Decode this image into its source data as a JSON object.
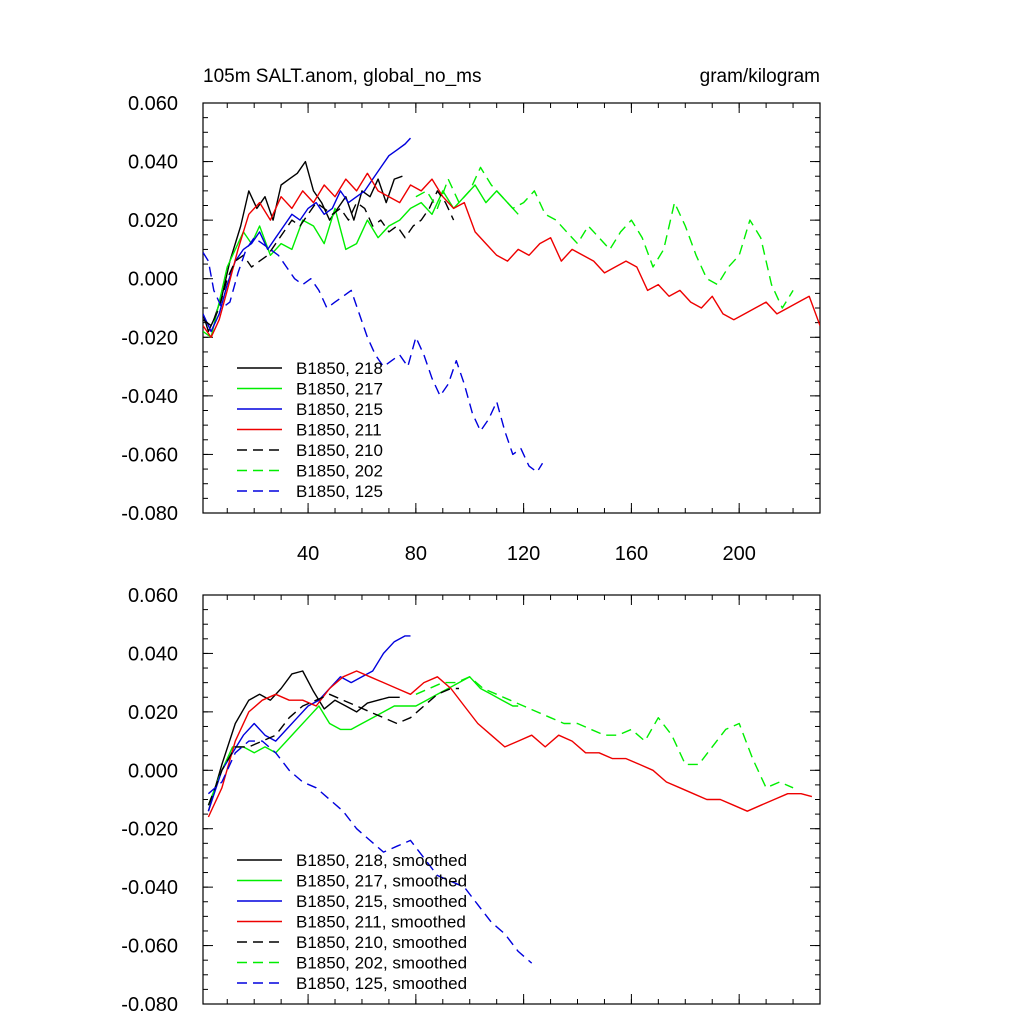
{
  "title_left": "105m SALT.anom, global_no_ms",
  "title_right": "gram/kilogram",
  "colors": {
    "black": "#000000",
    "green": "#00ee00",
    "blue": "#0000dd",
    "red": "#ee0000"
  },
  "chart_data": [
    {
      "type": "line",
      "title": "105m SALT.anom, global_no_ms",
      "units": "gram/kilogram",
      "xlim": [
        1,
        230
      ],
      "ylim": [
        -0.08,
        0.06
      ],
      "xticks": [
        40,
        80,
        120,
        160,
        200
      ],
      "xticklabels": [
        "40",
        "80",
        "120",
        "160",
        "200"
      ],
      "yticks": [
        -0.08,
        -0.06,
        -0.04,
        -0.02,
        0.0,
        0.02,
        0.04,
        0.06
      ],
      "yticklabels": [
        "-0.080",
        "-0.060",
        "-0.040",
        "-0.020",
        "0.000",
        "0.020",
        "0.040",
        "0.060"
      ],
      "legend_position": "bottom-left",
      "series": [
        {
          "name": "B1850, 218",
          "color": "#000000",
          "dash": false,
          "x": [
            1,
            3,
            5,
            8,
            11,
            15,
            18,
            21,
            24,
            27,
            30,
            33,
            36,
            39,
            42,
            45,
            48,
            51,
            54,
            57,
            60,
            63,
            66,
            69,
            72,
            75
          ],
          "y": [
            -0.012,
            -0.018,
            -0.014,
            -0.006,
            0.006,
            0.018,
            0.03,
            0.024,
            0.028,
            0.02,
            0.032,
            0.034,
            0.036,
            0.04,
            0.03,
            0.026,
            0.02,
            0.024,
            0.028,
            0.02,
            0.03,
            0.028,
            0.034,
            0.026,
            0.034,
            0.035
          ]
        },
        {
          "name": "B1850, 217",
          "color": "#00ee00",
          "dash": false,
          "x": [
            1,
            4,
            7,
            10,
            13,
            16,
            19,
            22,
            26,
            30,
            34,
            38,
            42,
            46,
            50,
            54,
            58,
            62,
            66,
            70,
            74,
            78,
            82,
            86,
            90,
            94,
            98,
            102,
            106,
            110,
            114,
            118
          ],
          "y": [
            -0.018,
            -0.02,
            -0.008,
            0.004,
            0.01,
            0.016,
            0.012,
            0.018,
            0.008,
            0.012,
            0.01,
            0.02,
            0.018,
            0.012,
            0.024,
            0.01,
            0.012,
            0.02,
            0.014,
            0.018,
            0.02,
            0.024,
            0.026,
            0.022,
            0.03,
            0.024,
            0.028,
            0.032,
            0.026,
            0.03,
            0.026,
            0.022
          ]
        },
        {
          "name": "B1850, 215",
          "color": "#0000dd",
          "dash": false,
          "x": [
            1,
            4,
            7,
            10,
            13,
            16,
            19,
            22,
            25,
            28,
            31,
            34,
            37,
            40,
            43,
            46,
            49,
            52,
            55,
            58,
            61,
            64,
            67,
            70,
            73,
            76,
            78
          ],
          "y": [
            -0.012,
            -0.018,
            -0.012,
            -0.002,
            0.006,
            0.01,
            0.012,
            0.016,
            0.01,
            0.014,
            0.018,
            0.022,
            0.02,
            0.024,
            0.026,
            0.022,
            0.024,
            0.03,
            0.026,
            0.028,
            0.03,
            0.034,
            0.038,
            0.042,
            0.044,
            0.046,
            0.048
          ]
        },
        {
          "name": "B1850, 211",
          "color": "#ee0000",
          "dash": false,
          "x": [
            1,
            4,
            7,
            10,
            14,
            18,
            22,
            26,
            30,
            34,
            38,
            42,
            46,
            50,
            54,
            58,
            62,
            66,
            70,
            74,
            78,
            82,
            86,
            90,
            94,
            98,
            102,
            106,
            110,
            114,
            118,
            122,
            126,
            130,
            134,
            138,
            142,
            146,
            150,
            154,
            158,
            162,
            166,
            170,
            174,
            178,
            182,
            186,
            190,
            194,
            198,
            202,
            206,
            210,
            214,
            218,
            222,
            226,
            230
          ],
          "y": [
            -0.016,
            -0.02,
            -0.014,
            -0.004,
            0.01,
            0.022,
            0.026,
            0.02,
            0.028,
            0.024,
            0.03,
            0.026,
            0.032,
            0.028,
            0.034,
            0.03,
            0.036,
            0.03,
            0.028,
            0.026,
            0.032,
            0.03,
            0.034,
            0.028,
            0.024,
            0.026,
            0.016,
            0.012,
            0.008,
            0.006,
            0.01,
            0.008,
            0.012,
            0.014,
            0.006,
            0.01,
            0.008,
            0.006,
            0.002,
            0.004,
            0.006,
            0.004,
            -0.004,
            -0.002,
            -0.006,
            -0.004,
            -0.008,
            -0.01,
            -0.006,
            -0.012,
            -0.014,
            -0.012,
            -0.01,
            -0.008,
            -0.012,
            -0.01,
            -0.008,
            -0.006,
            -0.016
          ]
        },
        {
          "name": "B1850, 210",
          "color": "#000000",
          "dash": true,
          "x": [
            1,
            4,
            7,
            10,
            13,
            16,
            19,
            22,
            25,
            28,
            31,
            34,
            37,
            40,
            43,
            46,
            49,
            52,
            55,
            58,
            61,
            64,
            67,
            70,
            73,
            76,
            79,
            82,
            85,
            88,
            91,
            94
          ],
          "y": [
            -0.014,
            -0.016,
            -0.01,
            0.0,
            0.006,
            0.008,
            0.004,
            0.006,
            0.008,
            0.012,
            0.016,
            0.02,
            0.018,
            0.022,
            0.026,
            0.024,
            0.022,
            0.024,
            0.02,
            0.026,
            0.024,
            0.018,
            0.02,
            0.016,
            0.018,
            0.014,
            0.018,
            0.02,
            0.024,
            0.03,
            0.026,
            0.02
          ]
        },
        {
          "name": "B1850, 202",
          "color": "#00ee00",
          "dash": true,
          "x": [
            80,
            84,
            88,
            92,
            96,
            100,
            104,
            108,
            112,
            116,
            120,
            124,
            128,
            132,
            136,
            140,
            144,
            148,
            152,
            156,
            160,
            164,
            168,
            172,
            176,
            180,
            184,
            188,
            192,
            196,
            200,
            204,
            208,
            212,
            216,
            220
          ],
          "y": [
            0.028,
            0.03,
            0.024,
            0.034,
            0.026,
            0.03,
            0.038,
            0.032,
            0.028,
            0.024,
            0.026,
            0.03,
            0.022,
            0.02,
            0.016,
            0.012,
            0.018,
            0.014,
            0.01,
            0.016,
            0.02,
            0.014,
            0.004,
            0.01,
            0.026,
            0.018,
            0.008,
            0.0,
            -0.002,
            0.004,
            0.008,
            0.02,
            0.014,
            -0.002,
            -0.01,
            -0.004
          ]
        },
        {
          "name": "B1850, 125",
          "color": "#0000dd",
          "dash": true,
          "x": [
            1,
            3,
            5,
            8,
            11,
            14,
            17,
            20,
            23,
            26,
            29,
            32,
            35,
            38,
            41,
            44,
            47,
            50,
            53,
            56,
            59,
            62,
            65,
            68,
            71,
            74,
            77,
            80,
            83,
            86,
            89,
            92,
            95,
            98,
            101,
            104,
            107,
            110,
            113,
            116,
            119,
            122,
            125,
            127
          ],
          "y": [
            0.009,
            0.006,
            -0.004,
            -0.01,
            -0.008,
            0.002,
            0.01,
            0.014,
            0.012,
            0.01,
            0.008,
            0.004,
            0.0,
            -0.002,
            0.0,
            -0.004,
            -0.01,
            -0.008,
            -0.006,
            -0.004,
            -0.012,
            -0.02,
            -0.026,
            -0.03,
            -0.028,
            -0.026,
            -0.03,
            -0.02,
            -0.026,
            -0.034,
            -0.04,
            -0.036,
            -0.028,
            -0.036,
            -0.046,
            -0.052,
            -0.048,
            -0.042,
            -0.052,
            -0.06,
            -0.058,
            -0.064,
            -0.066,
            -0.063
          ]
        }
      ]
    },
    {
      "type": "line",
      "title": "",
      "xlim": [
        1,
        230
      ],
      "ylim": [
        -0.08,
        0.06
      ],
      "yticks": [
        -0.08,
        -0.06,
        -0.04,
        -0.02,
        0.0,
        0.02,
        0.04,
        0.06
      ],
      "yticklabels": [
        "-0.080",
        "-0.060",
        "-0.040",
        "-0.020",
        "0.000",
        "0.020",
        "0.040",
        "0.060"
      ],
      "legend_position": "bottom-left",
      "series": [
        {
          "name": "B1850, 218, smoothed",
          "color": "#000000",
          "dash": false,
          "x": [
            3,
            8,
            13,
            18,
            22,
            26,
            30,
            34,
            38,
            42,
            46,
            50,
            54,
            58,
            62,
            66,
            70,
            74
          ],
          "y": [
            -0.014,
            0.002,
            0.016,
            0.024,
            0.026,
            0.024,
            0.028,
            0.033,
            0.034,
            0.027,
            0.021,
            0.024,
            0.022,
            0.02,
            0.023,
            0.024,
            0.025,
            0.025
          ]
        },
        {
          "name": "B1850, 217, smoothed",
          "color": "#00ee00",
          "dash": false,
          "x": [
            3,
            8,
            12,
            16,
            20,
            24,
            28,
            32,
            36,
            40,
            44,
            48,
            52,
            56,
            60,
            64,
            68,
            72,
            76,
            80,
            84,
            88,
            92,
            96,
            100,
            104,
            108,
            112,
            116,
            118
          ],
          "y": [
            -0.012,
            0.0,
            0.008,
            0.008,
            0.006,
            0.008,
            0.006,
            0.01,
            0.014,
            0.018,
            0.022,
            0.016,
            0.014,
            0.014,
            0.016,
            0.018,
            0.02,
            0.022,
            0.022,
            0.022,
            0.024,
            0.026,
            0.028,
            0.03,
            0.032,
            0.028,
            0.026,
            0.024,
            0.022,
            0.022
          ]
        },
        {
          "name": "B1850, 215, smoothed",
          "color": "#0000dd",
          "dash": false,
          "x": [
            3,
            8,
            12,
            16,
            20,
            24,
            28,
            32,
            36,
            40,
            44,
            48,
            52,
            56,
            60,
            64,
            68,
            72,
            76,
            78
          ],
          "y": [
            -0.014,
            0.0,
            0.006,
            0.012,
            0.016,
            0.012,
            0.01,
            0.014,
            0.018,
            0.022,
            0.024,
            0.028,
            0.032,
            0.03,
            0.032,
            0.034,
            0.04,
            0.044,
            0.046,
            0.046
          ]
        },
        {
          "name": "B1850, 211, smoothed",
          "color": "#ee0000",
          "dash": false,
          "x": [
            3,
            8,
            13,
            18,
            23,
            28,
            33,
            38,
            43,
            48,
            53,
            58,
            63,
            68,
            73,
            78,
            83,
            88,
            93,
            98,
            103,
            108,
            113,
            118,
            123,
            128,
            133,
            138,
            143,
            148,
            153,
            158,
            163,
            168,
            173,
            178,
            183,
            188,
            193,
            198,
            203,
            208,
            213,
            218,
            223,
            227
          ],
          "y": [
            -0.016,
            -0.006,
            0.01,
            0.02,
            0.024,
            0.026,
            0.024,
            0.024,
            0.022,
            0.028,
            0.032,
            0.034,
            0.032,
            0.03,
            0.028,
            0.026,
            0.03,
            0.032,
            0.028,
            0.022,
            0.016,
            0.012,
            0.008,
            0.01,
            0.012,
            0.008,
            0.012,
            0.01,
            0.006,
            0.006,
            0.004,
            0.004,
            0.002,
            0.0,
            -0.004,
            -0.006,
            -0.008,
            -0.01,
            -0.01,
            -0.012,
            -0.014,
            -0.012,
            -0.01,
            -0.008,
            -0.008,
            -0.009
          ]
        },
        {
          "name": "B1850, 210, smoothed",
          "color": "#000000",
          "dash": true,
          "x": [
            3,
            8,
            13,
            18,
            23,
            28,
            33,
            38,
            43,
            48,
            53,
            58,
            63,
            68,
            73,
            78,
            83,
            88,
            93,
            96
          ],
          "y": [
            -0.012,
            0.0,
            0.008,
            0.008,
            0.01,
            0.012,
            0.018,
            0.022,
            0.024,
            0.026,
            0.024,
            0.022,
            0.02,
            0.018,
            0.016,
            0.018,
            0.022,
            0.026,
            0.028,
            0.028
          ]
        },
        {
          "name": "B1850, 202, smoothed",
          "color": "#00ee00",
          "dash": true,
          "x": [
            80,
            85,
            90,
            95,
            100,
            105,
            110,
            115,
            120,
            125,
            130,
            135,
            140,
            145,
            150,
            155,
            160,
            165,
            170,
            175,
            180,
            185,
            190,
            195,
            200,
            205,
            210,
            215,
            220
          ],
          "y": [
            0.026,
            0.028,
            0.03,
            0.03,
            0.032,
            0.028,
            0.026,
            0.024,
            0.022,
            0.02,
            0.018,
            0.016,
            0.016,
            0.014,
            0.012,
            0.012,
            0.014,
            0.01,
            0.018,
            0.012,
            0.002,
            0.002,
            0.008,
            0.014,
            0.016,
            0.004,
            -0.006,
            -0.004,
            -0.006
          ]
        },
        {
          "name": "B1850, 125, smoothed",
          "color": "#0000dd",
          "dash": true,
          "x": [
            3,
            8,
            13,
            18,
            23,
            28,
            33,
            38,
            43,
            48,
            53,
            58,
            63,
            68,
            73,
            78,
            83,
            88,
            93,
            98,
            103,
            108,
            113,
            118,
            123
          ],
          "y": [
            -0.008,
            -0.004,
            0.006,
            0.01,
            0.01,
            0.006,
            0.0,
            -0.004,
            -0.006,
            -0.01,
            -0.014,
            -0.02,
            -0.024,
            -0.028,
            -0.026,
            -0.024,
            -0.03,
            -0.036,
            -0.038,
            -0.04,
            -0.046,
            -0.052,
            -0.056,
            -0.062,
            -0.066
          ]
        }
      ]
    }
  ]
}
